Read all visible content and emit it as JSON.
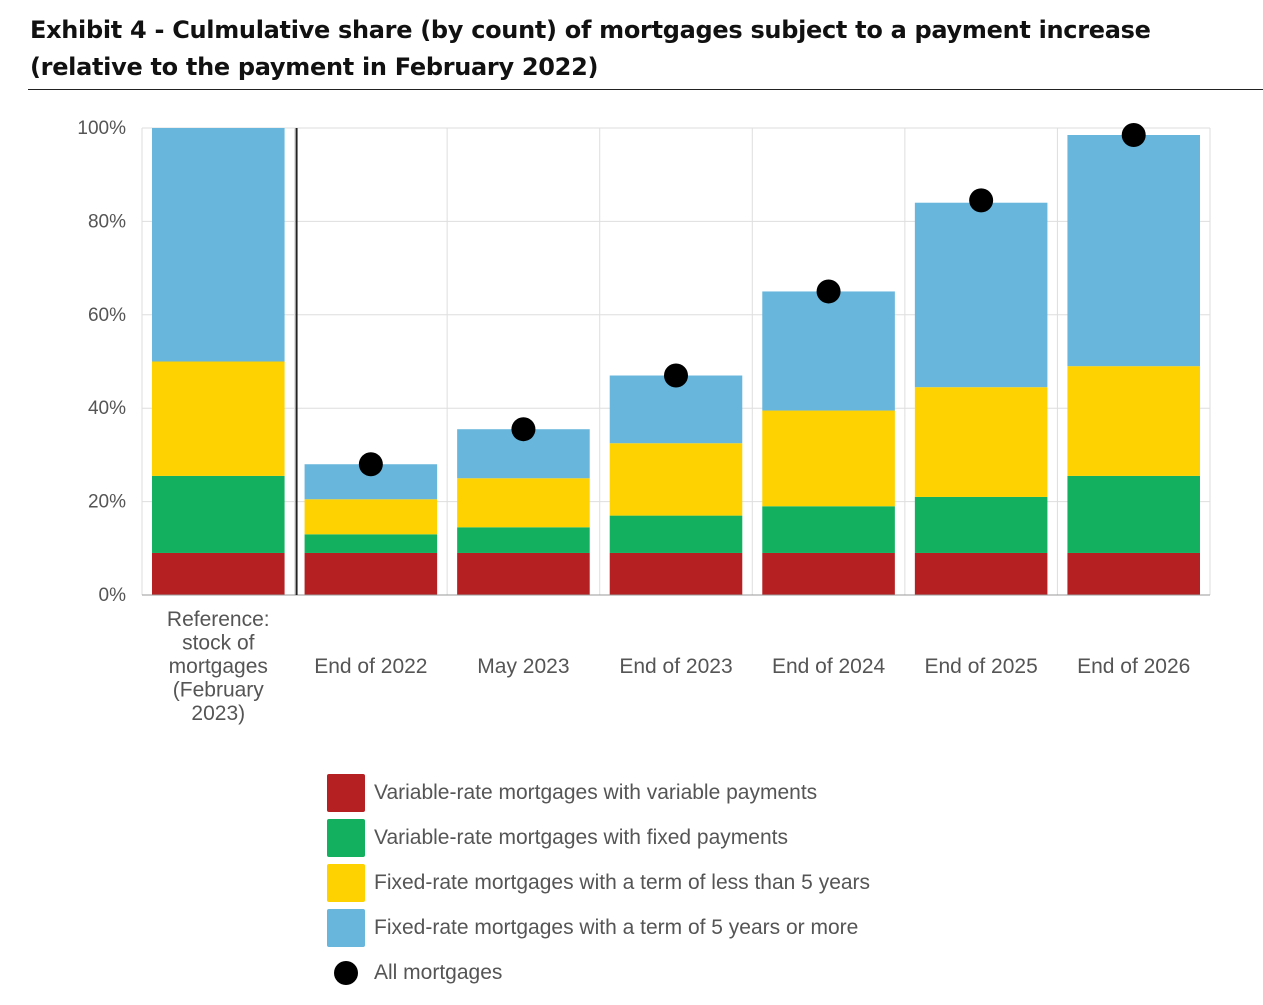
{
  "header": {
    "title": "Exhibit 4 - Culmulative share (by count) of mortgages subject to a payment increase (relative to the payment in February 2022)"
  },
  "chart_data": {
    "type": "bar",
    "stacked": true,
    "title": "Exhibit 4 - Culmulative share (by count) of mortgages subject to a payment increase (relative to the payment in February 2022)",
    "xlabel": "",
    "ylabel": "",
    "ylim": [
      0,
      100
    ],
    "y_ticks": [
      "0%",
      "20%",
      "40%",
      "60%",
      "80%",
      "100%"
    ],
    "grid": true,
    "legend_position": "bottom",
    "categories": [
      [
        "Reference:",
        "stock of",
        "mortgages",
        "(February",
        "2023)"
      ],
      [
        "End of 2022"
      ],
      [
        "May 2023"
      ],
      [
        "End of 2023"
      ],
      [
        "End of 2024"
      ],
      [
        "End of 2025"
      ],
      [
        "End of 2026"
      ]
    ],
    "series": [
      {
        "name": "Variable-rate mortgages with variable payments",
        "color": "#b52123",
        "values": [
          9,
          9,
          9,
          9,
          9,
          9,
          9
        ]
      },
      {
        "name": "Variable-rate mortgages with fixed payments",
        "color": "#13b15f",
        "values": [
          16.5,
          4,
          5.5,
          8,
          10,
          12,
          16.5
        ]
      },
      {
        "name": "Fixed-rate mortgages with a term of less than 5 years",
        "color": "#fdd200",
        "values": [
          24.5,
          7.5,
          10.5,
          15.5,
          20.5,
          23.5,
          23.5
        ]
      },
      {
        "name": "Fixed-rate mortgages with a term of 5 years or more",
        "color": "#68b6dc",
        "values": [
          50,
          7.5,
          10.5,
          14.5,
          25.5,
          39.5,
          49.5
        ]
      }
    ],
    "markers": {
      "name": "All mortgages",
      "color": "#000000",
      "values": [
        null,
        28,
        35.5,
        47,
        65,
        84.5,
        98.5
      ]
    }
  }
}
